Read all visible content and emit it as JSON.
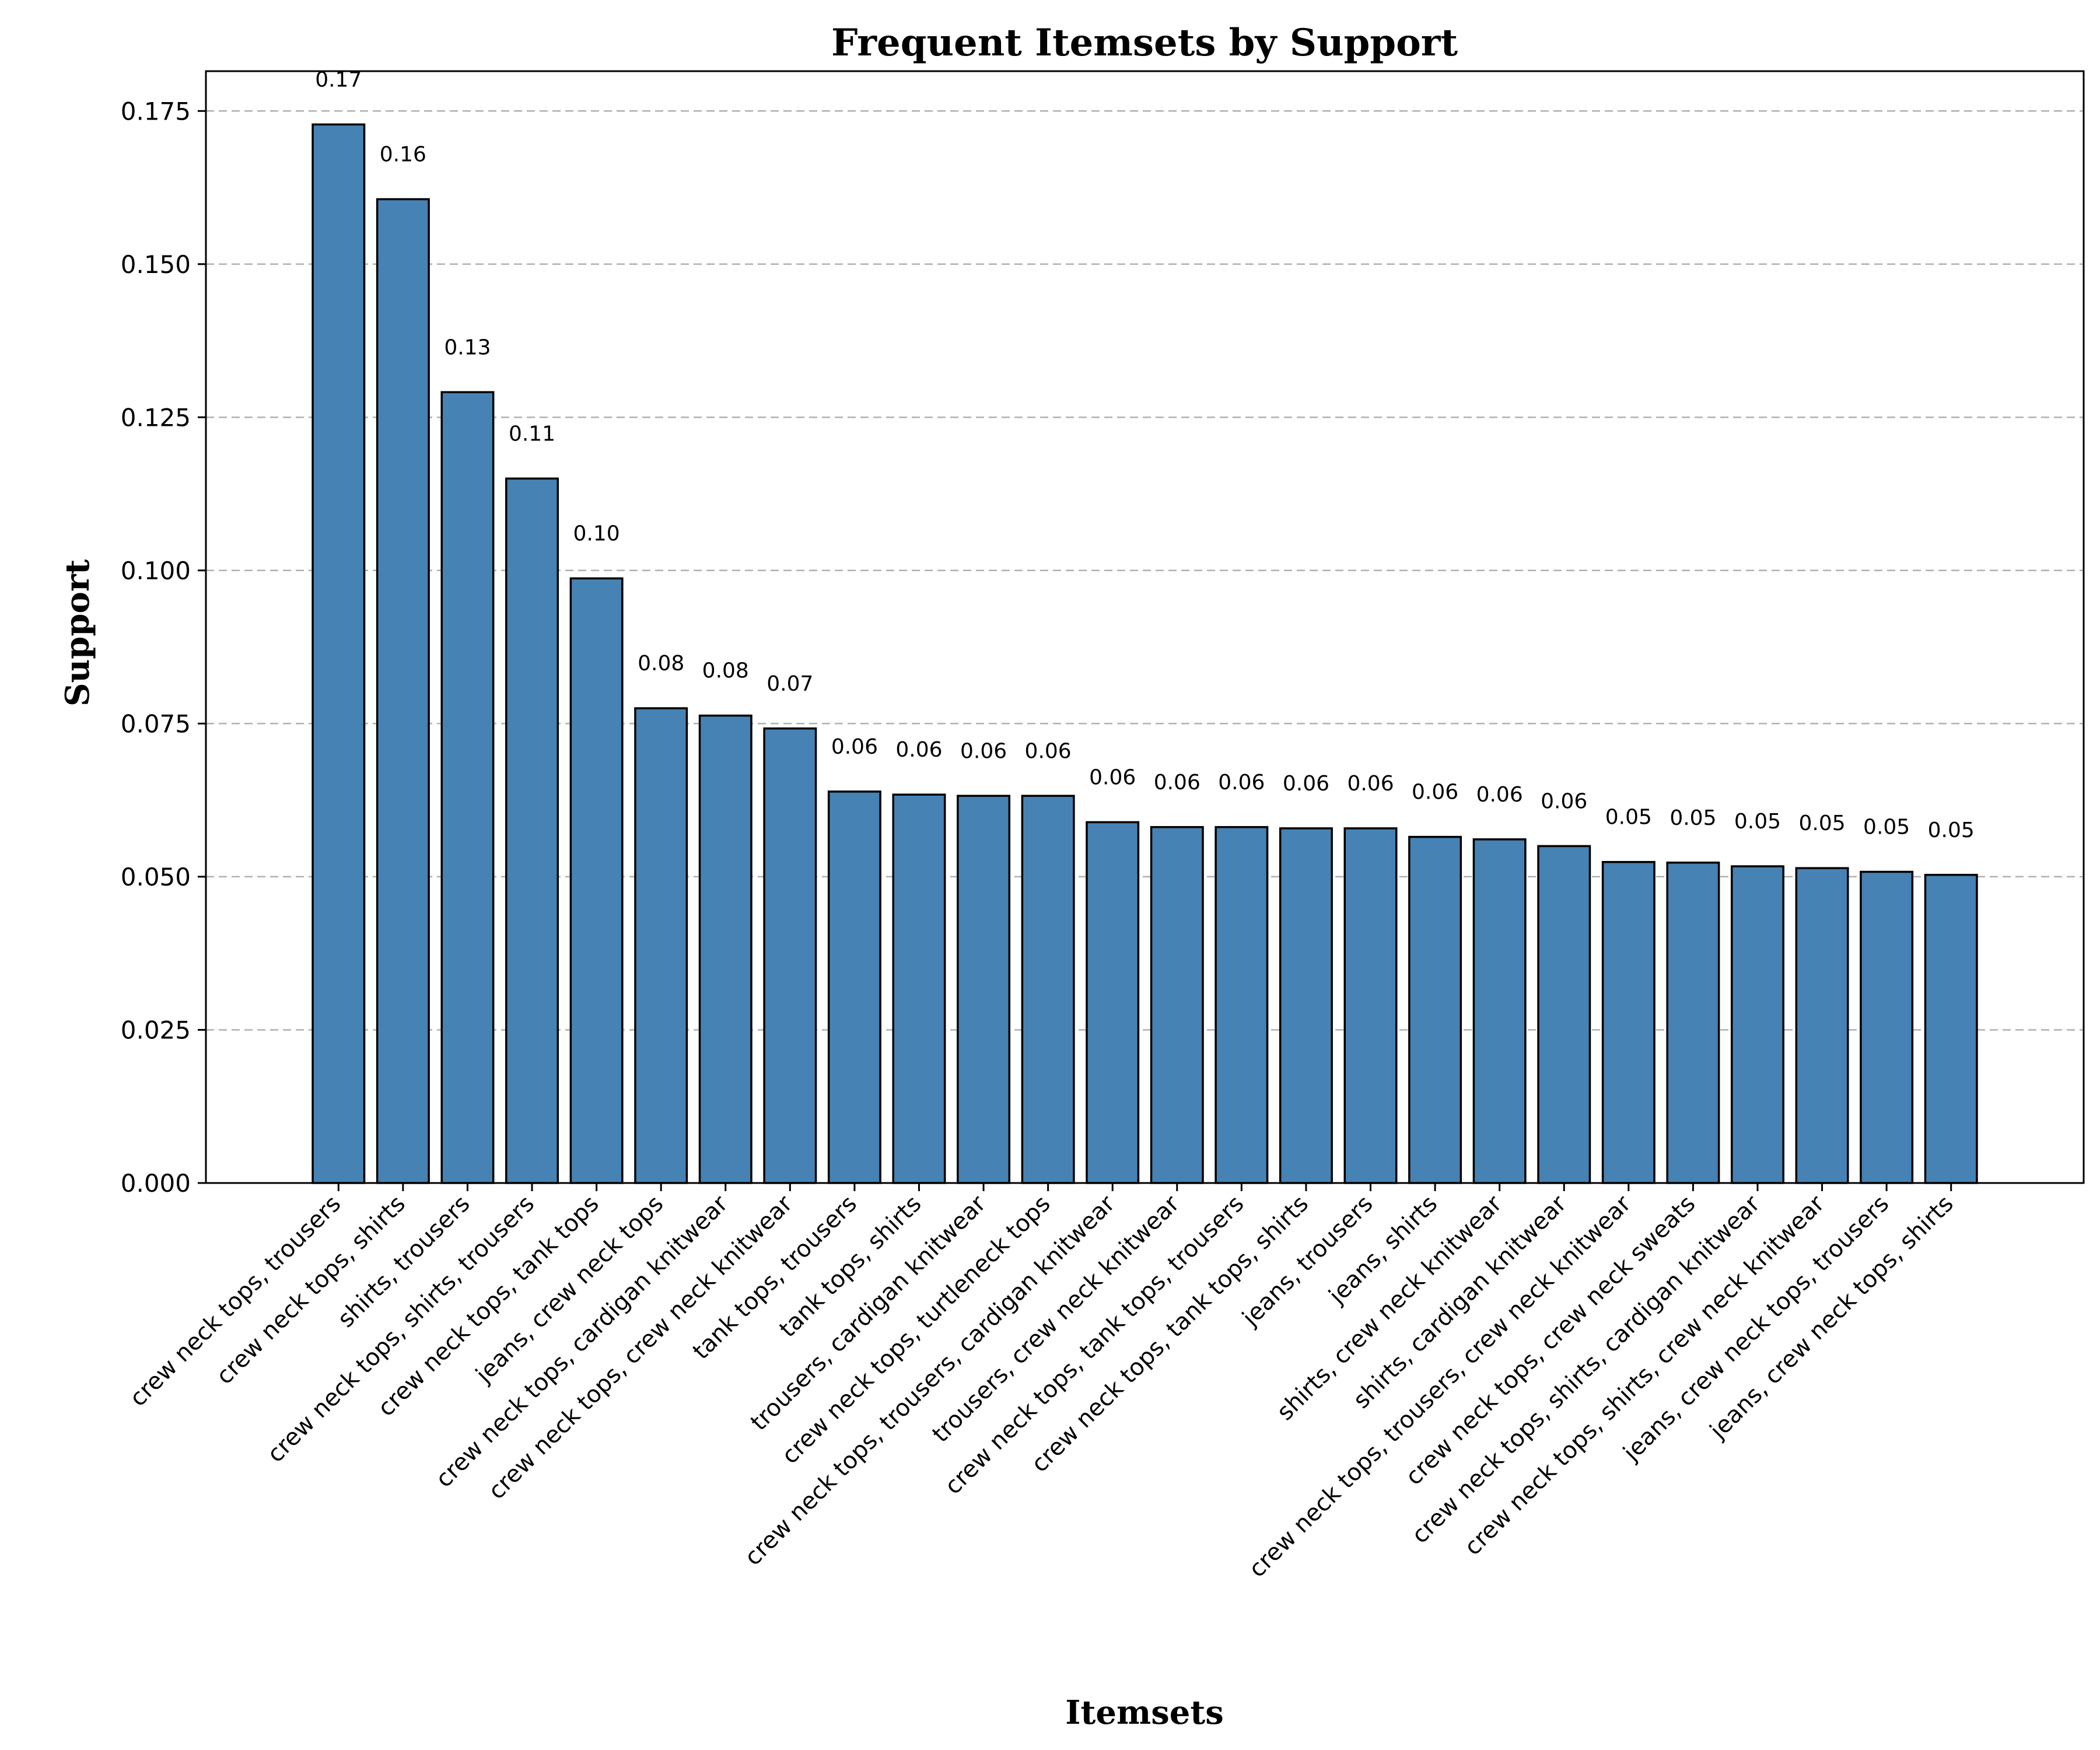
{
  "chart_data": {
    "type": "bar",
    "title": "Frequent Itemsets by Support",
    "xlabel": "Itemsets",
    "ylabel": "Support",
    "ylim": [
      0,
      0.1815
    ],
    "yticks": [
      0.0,
      0.025,
      0.05,
      0.075,
      0.1,
      0.125,
      0.15,
      0.175
    ],
    "ytick_labels": [
      "0.000",
      "0.025",
      "0.050",
      "0.075",
      "0.100",
      "0.125",
      "0.150",
      "0.175"
    ],
    "grid": "y-dashed",
    "bar_color": "#4682b4",
    "categories": [
      "crew neck tops, trousers",
      "crew neck tops, shirts",
      "shirts, trousers",
      "crew neck tops, shirts, trousers",
      "crew neck tops, tank tops",
      "jeans, crew neck tops",
      "crew neck tops, cardigan knitwear",
      "crew neck tops, crew neck knitwear",
      "tank tops, trousers",
      "tank tops, shirts",
      "trousers, cardigan knitwear",
      "crew neck tops, turtleneck tops",
      "crew neck tops, trousers, cardigan knitwear",
      "trousers, crew neck knitwear",
      "crew neck tops, tank tops, trousers",
      "crew neck tops, tank tops, shirts",
      "jeans, trousers",
      "jeans, shirts",
      "shirts, crew neck knitwear",
      "shirts, cardigan knitwear",
      "crew neck tops, trousers, crew neck knitwear",
      "crew neck tops, crew neck sweats",
      "crew neck tops, shirts, cardigan knitwear",
      "crew neck tops, shirts, crew neck knitwear",
      "jeans, crew neck tops, trousers",
      "jeans, crew neck tops, shirts"
    ],
    "values": [
      0.1728,
      0.1606,
      0.1291,
      0.115,
      0.0987,
      0.0775,
      0.0763,
      0.0742,
      0.0639,
      0.0634,
      0.0632,
      0.0632,
      0.0589,
      0.0581,
      0.0581,
      0.0579,
      0.0579,
      0.0565,
      0.0561,
      0.055,
      0.0524,
      0.0523,
      0.0517,
      0.0514,
      0.0508,
      0.0503
    ],
    "value_labels": [
      "0.17",
      "0.16",
      "0.13",
      "0.11",
      "0.10",
      "0.08",
      "0.08",
      "0.07",
      "0.06",
      "0.06",
      "0.06",
      "0.06",
      "0.06",
      "0.06",
      "0.06",
      "0.06",
      "0.06",
      "0.06",
      "0.06",
      "0.06",
      "0.05",
      "0.05",
      "0.05",
      "0.05",
      "0.05",
      "0.05"
    ]
  }
}
